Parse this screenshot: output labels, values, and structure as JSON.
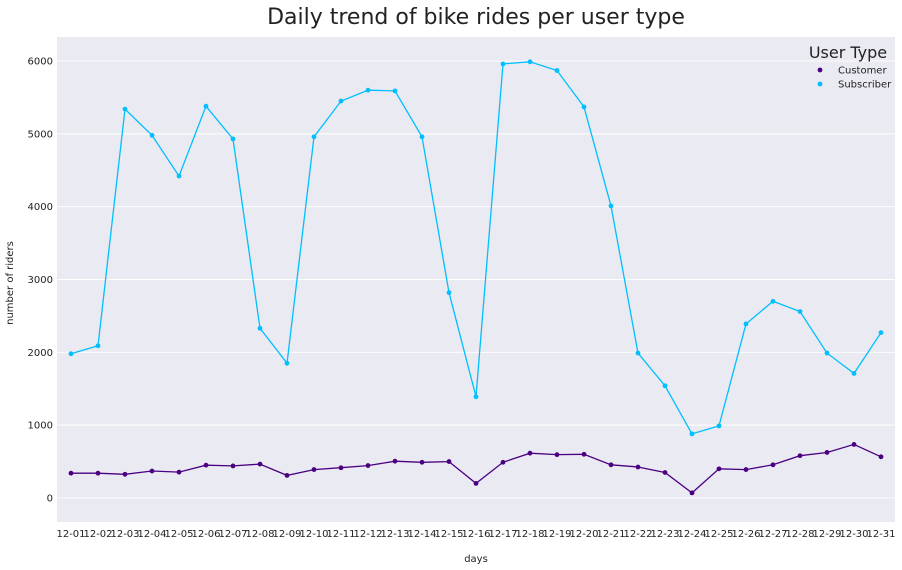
{
  "chart_data": {
    "type": "line",
    "title": "Daily trend of bike rides per user type",
    "xlabel": "days",
    "ylabel": "number of riders",
    "categories": [
      "12-01",
      "12-02",
      "12-03",
      "12-04",
      "12-05",
      "12-06",
      "12-07",
      "12-08",
      "12-09",
      "12-10",
      "12-11",
      "12-12",
      "12-13",
      "12-14",
      "12-15",
      "12-16",
      "12-17",
      "12-18",
      "12-19",
      "12-20",
      "12-21",
      "12-22",
      "12-23",
      "12-24",
      "12-25",
      "12-26",
      "12-27",
      "12-28",
      "12-29",
      "12-30",
      "12-31"
    ],
    "yticks": [
      0,
      1000,
      2000,
      3000,
      4000,
      5000,
      6000
    ],
    "ylim": [
      -330,
      6330
    ],
    "grid": true,
    "legend": {
      "title": "User Type",
      "position": "top-right"
    },
    "series": [
      {
        "name": "Customer",
        "color": "#4b0082",
        "values": [
          340,
          340,
          325,
          370,
          355,
          450,
          440,
          465,
          310,
          390,
          415,
          445,
          505,
          490,
          500,
          200,
          490,
          615,
          595,
          600,
          455,
          425,
          350,
          70,
          400,
          390,
          455,
          580,
          625,
          735,
          565
        ]
      },
      {
        "name": "Subscriber",
        "color": "#00bfff",
        "values": [
          1980,
          2090,
          5340,
          4980,
          4420,
          5380,
          4930,
          2330,
          1850,
          4960,
          5450,
          5600,
          5590,
          4960,
          2820,
          1390,
          5960,
          5990,
          5870,
          5370,
          4010,
          1990,
          1540,
          880,
          990,
          2390,
          2700,
          2560,
          1990,
          1710,
          2270
        ]
      }
    ]
  }
}
